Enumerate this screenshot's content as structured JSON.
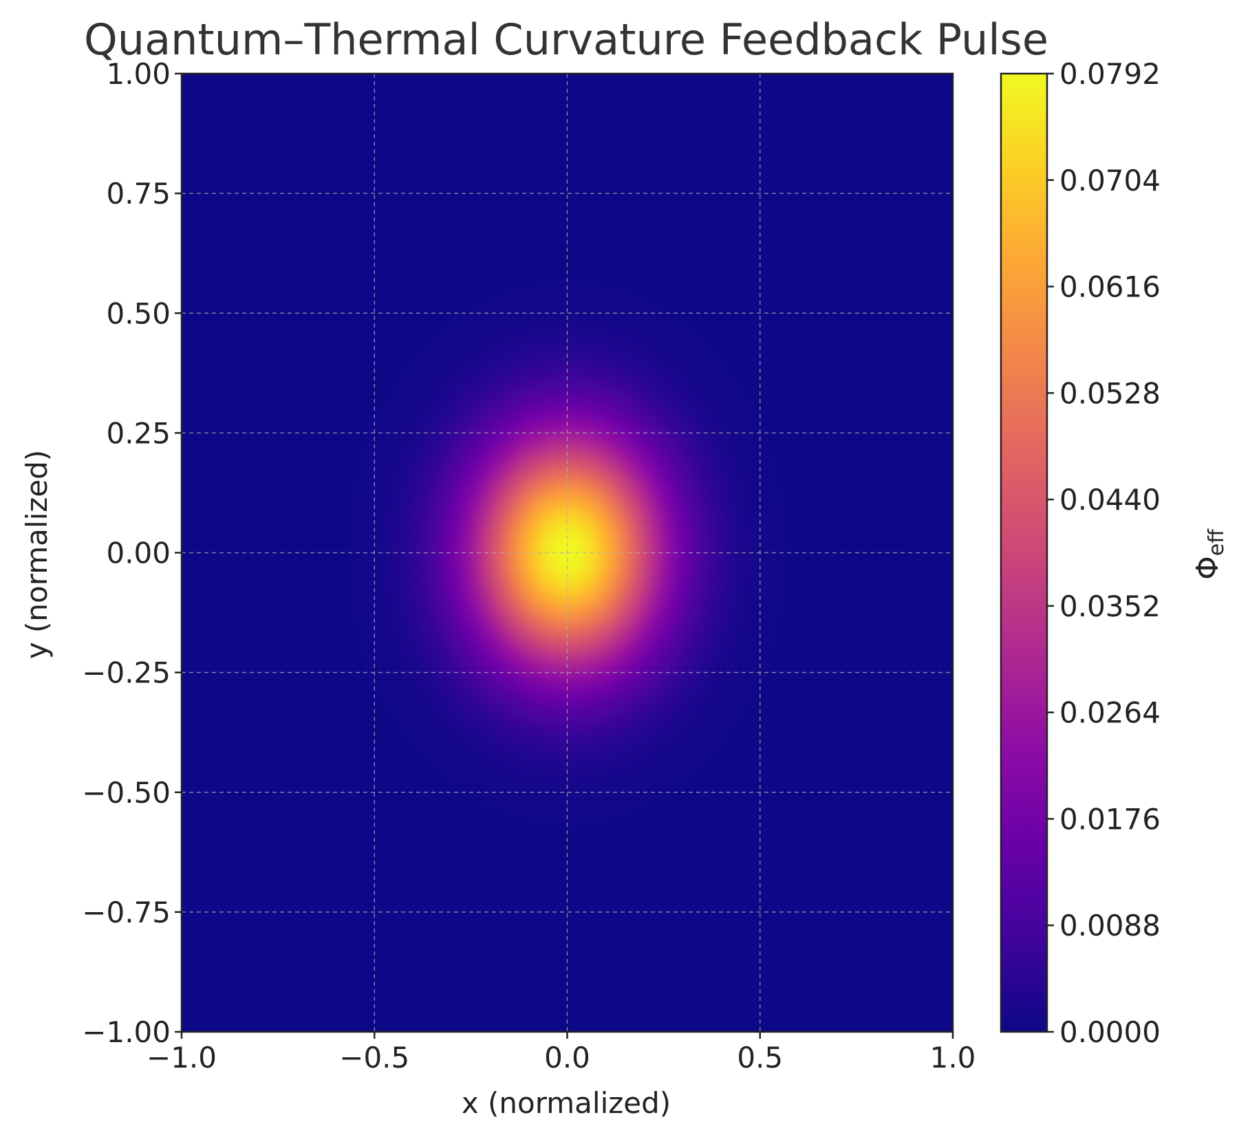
{
  "chart_data": {
    "type": "heatmap",
    "title": "Quantum–Thermal Curvature Feedback Pulse",
    "xlabel": "x (normalized)",
    "ylabel": "y (normalized)",
    "xlim": [
      -1.0,
      1.0
    ],
    "ylim": [
      -1.0,
      1.0
    ],
    "x_ticks": [
      -1.0,
      -0.5,
      0.0,
      0.5,
      1.0
    ],
    "x_tick_labels": [
      "−1.0",
      "−0.5",
      "0.0",
      "0.5",
      "1.0"
    ],
    "y_ticks": [
      1.0,
      0.75,
      0.5,
      0.25,
      0.0,
      -0.25,
      -0.5,
      -0.75,
      -1.0
    ],
    "y_tick_labels": [
      "1.00",
      "0.75",
      "0.50",
      "0.25",
      "0.00",
      "−0.25",
      "−0.50",
      "−0.75",
      "−1.00"
    ],
    "grid": true,
    "colormap": "plasma",
    "colorbar": {
      "label_main": "Φ",
      "label_sub": "eff",
      "range": [
        0.0,
        0.0792
      ],
      "ticks": [
        0.0,
        0.0088,
        0.0176,
        0.0264,
        0.0352,
        0.044,
        0.0528,
        0.0616,
        0.0704,
        0.0792
      ],
      "tick_labels": [
        "0.0000",
        "0.0088",
        "0.0176",
        "0.0264",
        "0.0352",
        "0.0440",
        "0.0528",
        "0.0616",
        "0.0704",
        "0.0792"
      ]
    },
    "peak": {
      "x": 0.0,
      "y": 0.0,
      "value": 0.0792
    },
    "colors": {
      "background": "#0d0887",
      "peak": "#f0f921"
    }
  }
}
